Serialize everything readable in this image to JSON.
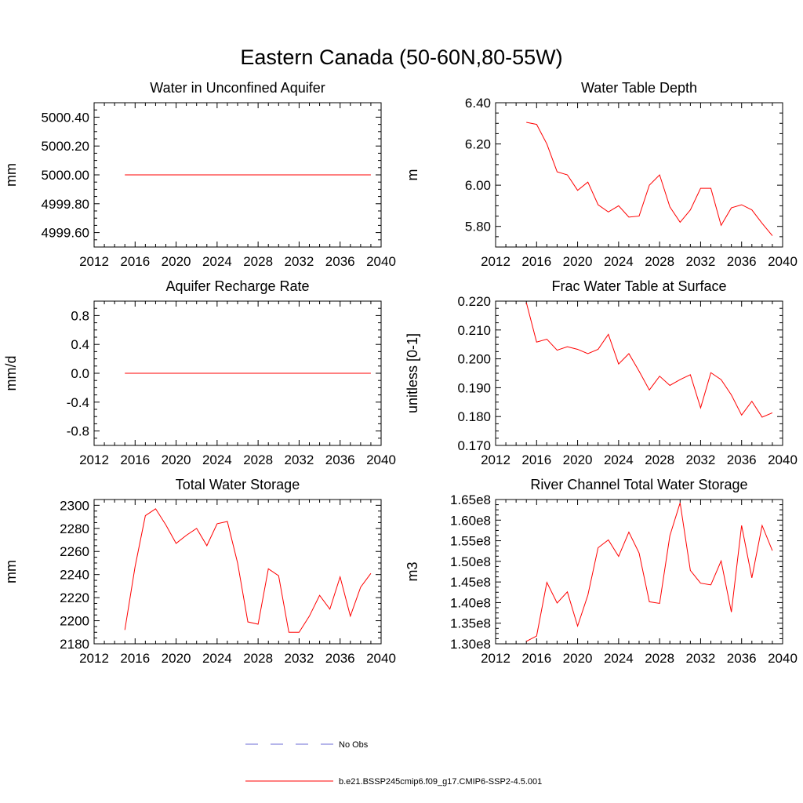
{
  "figure_title": "Eastern Canada (50-60N,80-55W)",
  "chart_data": [
    {
      "type": "line",
      "title": "Water in Unconfined Aquifer",
      "ylabel": "mm",
      "xlabel": "",
      "xlim": [
        2012,
        2040
      ],
      "xticks": [
        2012,
        2016,
        2020,
        2024,
        2028,
        2032,
        2036,
        2040
      ],
      "xtick_labels": [
        "2012",
        "2016",
        "2020",
        "2024",
        "2028",
        "2032",
        "2036",
        "2040"
      ],
      "ylim": [
        4999.5,
        5000.5
      ],
      "yticks": [
        4999.6,
        4999.8,
        5000.0,
        5000.2,
        5000.4
      ],
      "ytick_labels": [
        "4999.60",
        "4999.80",
        "5000.00",
        "5000.20",
        "5000.40"
      ],
      "series": [
        {
          "name": "b.e21.BSSP245cmip6.f09_g17.CMIP6-SSP2-4.5.001",
          "color": "#ff0000",
          "x": [
            2015,
            2016,
            2017,
            2018,
            2019,
            2020,
            2021,
            2022,
            2023,
            2024,
            2025,
            2026,
            2027,
            2028,
            2029,
            2030,
            2031,
            2032,
            2033,
            2034,
            2035,
            2036,
            2037,
            2038,
            2039
          ],
          "y": [
            5000,
            5000,
            5000,
            5000,
            5000,
            5000,
            5000,
            5000,
            5000,
            5000,
            5000,
            5000,
            5000,
            5000,
            5000,
            5000,
            5000,
            5000,
            5000,
            5000,
            5000,
            5000,
            5000,
            5000,
            5000
          ]
        }
      ]
    },
    {
      "type": "line",
      "title": "Water Table Depth",
      "ylabel": "m",
      "xlabel": "",
      "xlim": [
        2012,
        2040
      ],
      "xticks": [
        2012,
        2016,
        2020,
        2024,
        2028,
        2032,
        2036,
        2040
      ],
      "xtick_labels": [
        "2012",
        "2016",
        "2020",
        "2024",
        "2028",
        "2032",
        "2036",
        "2040"
      ],
      "ylim": [
        5.7,
        6.4
      ],
      "yticks": [
        5.8,
        6.0,
        6.2,
        6.4
      ],
      "ytick_labels": [
        "5.80",
        "6.00",
        "6.20",
        "6.40"
      ],
      "series": [
        {
          "name": "b.e21.BSSP245cmip6.f09_g17.CMIP6-SSP2-4.5.001",
          "color": "#ff0000",
          "x": [
            2015,
            2016,
            2017,
            2018,
            2019,
            2020,
            2021,
            2022,
            2023,
            2024,
            2025,
            2026,
            2027,
            2028,
            2029,
            2030,
            2031,
            2032,
            2033,
            2034,
            2035,
            2036,
            2037,
            2038,
            2039
          ],
          "y": [
            6.305,
            6.295,
            6.2,
            6.065,
            6.05,
            5.975,
            6.015,
            5.905,
            5.87,
            5.9,
            5.845,
            5.85,
            6.0,
            6.05,
            5.895,
            5.82,
            5.88,
            5.985,
            5.985,
            5.805,
            5.89,
            5.905,
            5.88,
            5.815,
            5.755
          ]
        }
      ]
    },
    {
      "type": "line",
      "title": "Aquifer Recharge Rate",
      "ylabel": "mm/d",
      "xlabel": "",
      "xlim": [
        2012,
        2040
      ],
      "xticks": [
        2012,
        2016,
        2020,
        2024,
        2028,
        2032,
        2036,
        2040
      ],
      "xtick_labels": [
        "2012",
        "2016",
        "2020",
        "2024",
        "2028",
        "2032",
        "2036",
        "2040"
      ],
      "ylim": [
        -1.0,
        1.0
      ],
      "yticks": [
        -0.8,
        -0.4,
        0.0,
        0.4,
        0.8
      ],
      "ytick_labels": [
        "-0.8",
        "-0.4",
        "0.0",
        "0.4",
        "0.8"
      ],
      "series": [
        {
          "name": "b.e21.BSSP245cmip6.f09_g17.CMIP6-SSP2-4.5.001",
          "color": "#ff0000",
          "x": [
            2015,
            2016,
            2017,
            2018,
            2019,
            2020,
            2021,
            2022,
            2023,
            2024,
            2025,
            2026,
            2027,
            2028,
            2029,
            2030,
            2031,
            2032,
            2033,
            2034,
            2035,
            2036,
            2037,
            2038,
            2039
          ],
          "y": [
            0,
            0,
            0,
            0,
            0,
            0,
            0,
            0,
            0,
            0,
            0,
            0,
            0,
            0,
            0,
            0,
            0,
            0,
            0,
            0,
            0,
            0,
            0,
            0,
            0
          ]
        }
      ]
    },
    {
      "type": "line",
      "title": "Frac Water Table at Surface",
      "ylabel": "unitless [0-1]",
      "xlabel": "",
      "xlim": [
        2012,
        2040
      ],
      "xticks": [
        2012,
        2016,
        2020,
        2024,
        2028,
        2032,
        2036,
        2040
      ],
      "xtick_labels": [
        "2012",
        "2016",
        "2020",
        "2024",
        "2028",
        "2032",
        "2036",
        "2040"
      ],
      "ylim": [
        0.17,
        0.22
      ],
      "yticks": [
        0.17,
        0.18,
        0.19,
        0.2,
        0.21,
        0.22
      ],
      "ytick_labels": [
        "0.170",
        "0.180",
        "0.190",
        "0.200",
        "0.210",
        "0.220"
      ],
      "series": [
        {
          "name": "b.e21.BSSP245cmip6.f09_g17.CMIP6-SSP2-4.5.001",
          "color": "#ff0000",
          "x": [
            2015,
            2016,
            2017,
            2018,
            2019,
            2020,
            2021,
            2022,
            2023,
            2024,
            2025,
            2026,
            2027,
            2028,
            2029,
            2030,
            2031,
            2032,
            2033,
            2034,
            2035,
            2036,
            2037,
            2038,
            2039
          ],
          "y": [
            0.2195,
            0.2058,
            0.2068,
            0.203,
            0.2042,
            0.2033,
            0.2018,
            0.2033,
            0.2085,
            0.1982,
            0.2018,
            0.1957,
            0.1892,
            0.194,
            0.1908,
            0.1928,
            0.1945,
            0.183,
            0.1952,
            0.1928,
            0.1875,
            0.1805,
            0.1853,
            0.1798,
            0.1813
          ]
        }
      ]
    },
    {
      "type": "line",
      "title": "Total Water Storage",
      "ylabel": "mm",
      "xlabel": "",
      "xlim": [
        2012,
        2040
      ],
      "xticks": [
        2012,
        2016,
        2020,
        2024,
        2028,
        2032,
        2036,
        2040
      ],
      "xtick_labels": [
        "2012",
        "2016",
        "2020",
        "2024",
        "2028",
        "2032",
        "2036",
        "2040"
      ],
      "ylim": [
        2180,
        2305
      ],
      "yticks": [
        2180,
        2200,
        2220,
        2240,
        2260,
        2280,
        2300
      ],
      "ytick_labels": [
        "2180",
        "2200",
        "2220",
        "2240",
        "2260",
        "2280",
        "2300"
      ],
      "series": [
        {
          "name": "b.e21.BSSP245cmip6.f09_g17.CMIP6-SSP2-4.5.001",
          "color": "#ff0000",
          "x": [
            2015,
            2016,
            2017,
            2018,
            2019,
            2020,
            2021,
            2022,
            2023,
            2024,
            2025,
            2026,
            2027,
            2028,
            2029,
            2030,
            2031,
            2032,
            2033,
            2034,
            2035,
            2036,
            2037,
            2038,
            2039
          ],
          "y": [
            2192,
            2247,
            2291,
            2297,
            2283,
            2267,
            2274,
            2280,
            2265,
            2284,
            2286,
            2250,
            2199,
            2197,
            2245,
            2239,
            2190,
            2190,
            2204,
            2222,
            2210,
            2238,
            2204,
            2229,
            2241
          ]
        }
      ]
    },
    {
      "type": "line",
      "title": "River Channel Total Water Storage",
      "ylabel": "m3",
      "xlabel": "",
      "xlim": [
        2012,
        2040
      ],
      "xticks": [
        2012,
        2016,
        2020,
        2024,
        2028,
        2032,
        2036,
        2040
      ],
      "xtick_labels": [
        "2012",
        "2016",
        "2020",
        "2024",
        "2028",
        "2032",
        "2036",
        "2040"
      ],
      "ylim": [
        130000000.0,
        165000000.0
      ],
      "yticks": [
        130000000.0,
        135000000.0,
        140000000.0,
        145000000.0,
        150000000.0,
        155000000.0,
        160000000.0,
        165000000.0
      ],
      "ytick_labels": [
        "1.30e8",
        "1.35e8",
        "1.40e8",
        "1.45e8",
        "1.50e8",
        "1.55e8",
        "1.60e8",
        "1.65e8"
      ],
      "series": [
        {
          "name": "b.e21.BSSP245cmip6.f09_g17.CMIP6-SSP2-4.5.001",
          "color": "#ff0000",
          "x": [
            2015,
            2016,
            2017,
            2018,
            2019,
            2020,
            2021,
            2022,
            2023,
            2024,
            2025,
            2026,
            2027,
            2028,
            2029,
            2030,
            2031,
            2032,
            2033,
            2034,
            2035,
            2036,
            2037,
            2038,
            2039
          ],
          "y": [
            130600000.0,
            131900000.0,
            144900000.0,
            139900000.0,
            142600000.0,
            134300000.0,
            141800000.0,
            153300000.0,
            155200000.0,
            151200000.0,
            157100000.0,
            152000000.0,
            140200000.0,
            139800000.0,
            156200000.0,
            164200000.0,
            147800000.0,
            144700000.0,
            144300000.0,
            150100000.0,
            137700000.0,
            158700000.0,
            146000000.0,
            158700000.0,
            152600000.0
          ]
        }
      ]
    }
  ],
  "legend": [
    {
      "label": "No Obs",
      "color": "#6b6bd6",
      "style": "dashed"
    },
    {
      "label": "b.e21.BSSP245cmip6.f09_g17.CMIP6-SSP2-4.5.001",
      "color": "#ff0000",
      "style": "solid"
    }
  ]
}
